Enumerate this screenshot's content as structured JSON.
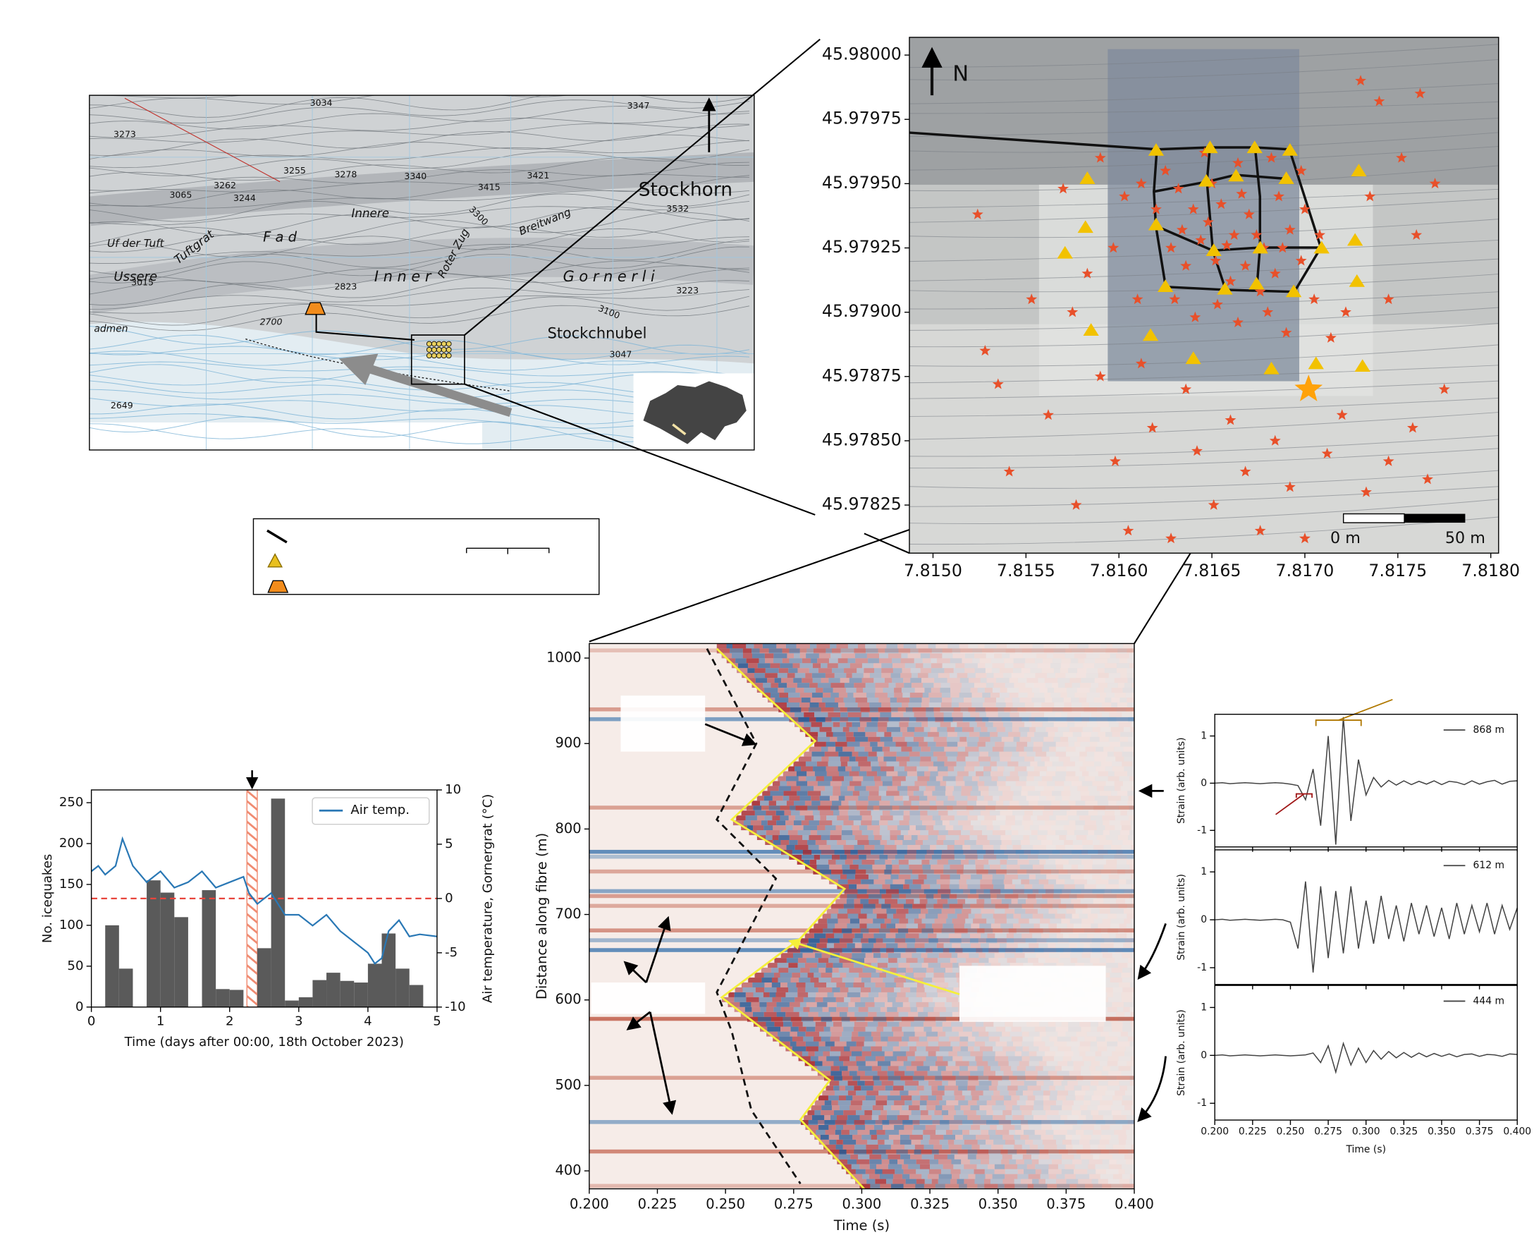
{
  "map": {
    "labels": [
      "3034",
      "3347",
      "3273",
      "3255",
      "3278",
      "3340",
      "3415",
      "3421",
      "Stockhorn",
      "3532",
      "3262",
      "3244",
      "3065",
      "Innere",
      "Uf der Tuft",
      "Tuftgrat",
      "F a d",
      "Ussere",
      "I n n e r",
      "G o r n e r l i",
      "Roter Zug",
      "Breitwang",
      "3300",
      "3015",
      "2823",
      "3223",
      "3100",
      "2700",
      "admen",
      "Stockchnubel",
      "3047",
      "2649"
    ]
  },
  "chart_data": [
    {
      "type": "scatter",
      "xlim": [
        7.814873,
        7.818042
      ],
      "ylim": [
        45.978063,
        45.980069
      ],
      "xticks": [
        {
          "value": 7.815,
          "label": "7.8150"
        },
        7.8155,
        {
          "value": 7.816,
          "label": "7.8160"
        },
        7.8165,
        {
          "value": 7.817,
          "label": "7.8170"
        },
        7.8175,
        {
          "value": 7.818,
          "label": "7.8180"
        }
      ],
      "yticks": [
        45.97825,
        {
          "value": 45.9785,
          "label": "45.97850"
        },
        45.97875,
        {
          "value": 45.979,
          "label": "45.97900"
        },
        45.97925,
        {
          "value": 45.9795,
          "label": "45.97950"
        },
        45.97975,
        {
          "value": 45.98,
          "label": "45.98000"
        }
      ],
      "annotations": [
        "N",
        "0 m",
        "50 m"
      ],
      "series": [
        {
          "marker": "star",
          "color": "#e8502a",
          "markersize": 6,
          "x": [
            7.81524,
            7.81535,
            7.81528,
            7.81541,
            7.81553,
            7.81562,
            7.81577,
            7.81583,
            7.8159,
            7.81598,
            7.81605,
            7.81612,
            7.81618,
            7.81628,
            7.81636,
            7.81642,
            7.81651,
            7.8166,
            7.81668,
            7.81676,
            7.81684,
            7.81692,
            7.817,
            7.81712,
            7.8172,
            7.81733,
            7.81745,
            7.81758,
            7.81766,
            7.81775,
            7.81745,
            7.8176,
            7.81752,
            7.8177,
            7.8174,
            7.8173,
            7.81762,
            7.81735,
            7.81722,
            7.81714,
            7.8159,
            7.81603,
            7.8157,
            7.81597,
            7.81575,
            7.8161,
            7.81625,
            7.81632,
            7.8164,
            7.81648,
            7.81655,
            7.81662,
            7.8167,
            7.81678,
            7.81686,
            7.81692,
            7.81628,
            7.81636,
            7.81644,
            7.81652,
            7.8166,
            7.81668,
            7.81676,
            7.81684,
            7.81698,
            7.81705,
            7.8163,
            7.81641,
            7.81653,
            7.81664,
            7.8168,
            7.8169,
            7.817,
            7.8162,
            7.81646,
            7.81664,
            7.81682,
            7.81698,
            7.81634,
            7.81658,
            7.81674,
            7.81688,
            7.8165,
            7.81666,
            7.81612,
            7.81708
          ],
          "y": [
            45.97938,
            45.97872,
            45.97885,
            45.97838,
            45.97905,
            45.9786,
            45.97825,
            45.97915,
            45.97875,
            45.97842,
            45.97815,
            45.9788,
            45.97855,
            45.97812,
            45.9787,
            45.97846,
            45.97825,
            45.97858,
            45.97838,
            45.97815,
            45.9785,
            45.97832,
            45.97812,
            45.97845,
            45.9786,
            45.9783,
            45.97842,
            45.97855,
            45.97835,
            45.9787,
            45.97905,
            45.9793,
            45.9796,
            45.9795,
            45.97982,
            45.9799,
            45.97985,
            45.97945,
            45.979,
            45.9789,
            45.9796,
            45.97945,
            45.97948,
            45.97925,
            45.979,
            45.97905,
            45.97955,
            45.97948,
            45.9794,
            45.97935,
            45.97942,
            45.9793,
            45.97938,
            45.97925,
            45.97945,
            45.97932,
            45.97925,
            45.97918,
            45.97928,
            45.9792,
            45.97912,
            45.97918,
            45.97908,
            45.97915,
            45.9792,
            45.97905,
            45.97905,
            45.97898,
            45.97903,
            45.97896,
            45.979,
            45.97892,
            45.9794,
            45.9794,
            45.97962,
            45.97958,
            45.9796,
            45.97955,
            45.97932,
            45.97926,
            45.9793,
            45.97925,
            45.9795,
            45.97946,
            45.9795,
            45.9793
          ]
        },
        {
          "marker": "triangle",
          "color": "#f2c200",
          "markersize": 8,
          "x": [
            7.8162,
            7.81649,
            7.81673,
            7.81692,
            7.81583,
            7.81729,
            7.81647,
            7.81663,
            7.8169,
            7.8162,
            7.81582,
            7.81571,
            7.81651,
            7.81676,
            7.81709,
            7.81727,
            7.81625,
            7.81657,
            7.81674,
            7.81694,
            7.81728,
            7.81585,
            7.81617,
            7.8164,
            7.81682,
            7.81706,
            7.81731
          ],
          "y": [
            45.97963,
            45.97964,
            45.97964,
            45.97963,
            45.97952,
            45.97955,
            45.97951,
            45.97953,
            45.97952,
            45.97934,
            45.97933,
            45.97923,
            45.97924,
            45.97925,
            45.97925,
            45.97928,
            45.9791,
            45.97909,
            45.97911,
            45.97908,
            45.97912,
            45.97893,
            45.97891,
            45.97882,
            45.97878,
            45.9788,
            45.97879
          ]
        },
        {
          "marker": "star",
          "color": "#ffa20a",
          "markersize": 15,
          "x": [
            7.81702
          ],
          "y": [
            45.9787
          ]
        }
      ]
    },
    {
      "type": "histogram",
      "xlabel": "Time (days after 00:00, 18th October 2023)",
      "ylabel": "No. icequakes",
      "y2label": "Air temperature, Gornergrat (°C)",
      "xlim": [
        0,
        5
      ],
      "xticks": [
        0,
        1,
        2,
        3,
        4,
        5
      ],
      "ylim": [
        0,
        265.6
      ],
      "yticks": [
        0,
        50,
        100,
        150,
        200,
        250
      ],
      "y2lim": [
        -10,
        10
      ],
      "y2ticks": [
        -10,
        -5,
        0,
        5,
        10
      ],
      "color": "#5a5a5a",
      "bins": [
        0.2,
        0.4,
        0.6,
        0.8,
        1.0,
        1.2,
        1.4,
        1.6,
        1.8,
        2.0,
        2.2,
        2.4,
        2.6,
        2.8,
        3.0,
        3.2,
        3.4,
        3.6,
        3.8,
        4.0,
        4.2,
        4.4,
        4.6,
        4.8
      ],
      "values": [
        100,
        47,
        0,
        155,
        140,
        110,
        0,
        143,
        22,
        21,
        0,
        72,
        255,
        8,
        12,
        33,
        42,
        32,
        30,
        53,
        90,
        47,
        27
      ],
      "hline": {
        "value": 0,
        "axis": "y2",
        "color": "#e8453c"
      },
      "span": [
        2.25,
        2.4
      ],
      "span_color": "#f08a70",
      "legend": "upper right",
      "series": [
        {
          "name": "Air temp.",
          "color": "#2a78b5",
          "axis": "y2",
          "x": [
            0,
            0.1,
            0.2,
            0.35,
            0.45,
            0.6,
            0.8,
            1.0,
            1.2,
            1.4,
            1.6,
            1.8,
            2.0,
            2.2,
            2.28,
            2.4,
            2.6,
            2.8,
            3.0,
            3.2,
            3.4,
            3.6,
            3.8,
            4.0,
            4.1,
            4.2,
            4.3,
            4.45,
            4.6,
            4.75,
            5.0
          ],
          "values": [
            2.5,
            3,
            2.2,
            3,
            5.5,
            3,
            1.5,
            2.5,
            1,
            1.5,
            2.5,
            1,
            1.5,
            2,
            0.5,
            -0.5,
            0.5,
            -1.5,
            -1.5,
            -2.5,
            -1.5,
            -3,
            -4,
            -5,
            -6,
            -5.5,
            -3,
            -2,
            -3.5,
            -3.3,
            -3.5
          ]
        }
      ]
    },
    {
      "type": "heatmap",
      "xlabel": "Time (s)",
      "ylabel": "Distance along fibre (m)",
      "xlim": [
        0.2,
        0.4
      ],
      "ylim": [
        379,
        1017
      ],
      "xticks": [
        {
          "value": 0.2,
          "label": "0.200"
        },
        0.225,
        {
          "value": 0.25,
          "label": "0.250"
        },
        0.275,
        {
          "value": 0.3,
          "label": "0.300"
        },
        0.325,
        {
          "value": 0.35,
          "label": "0.350"
        },
        0.375,
        {
          "value": 0.4,
          "label": "0.400"
        }
      ],
      "yticks": [
        400,
        500,
        600,
        700,
        800,
        900,
        1000
      ],
      "series": [
        {
          "style": "dashed",
          "color": "#111111",
          "x": [
            0.2432,
            0.2613,
            0.2468,
            0.2685,
            0.2468,
            0.2523,
            0.2595,
            0.2775
          ],
          "y": [
            1011,
            900,
            811,
            742,
            609,
            563,
            471,
            385
          ]
        },
        {
          "style": "solid",
          "color": "#f5f03a",
          "x": [
            0.2468,
            0.2613,
            0.2829,
            0.2523,
            0.2937,
            0.2775,
            0.2486,
            0.2883,
            0.2775,
            0.3009
          ],
          "y": [
            1011,
            966,
            903,
            811,
            730,
            672,
            603,
            506,
            460,
            379
          ]
        }
      ]
    },
    {
      "type": "line",
      "ylabel": "Strain (arb. units)",
      "xlim": [
        0.2,
        0.4
      ],
      "ylim": [
        -1.35,
        1.46
      ],
      "xticks": [
        0.2,
        0.225,
        0.25,
        0.275,
        0.3,
        0.325,
        0.35,
        0.375,
        0.4
      ],
      "xticklabels": false,
      "yticks": [
        -1,
        0,
        1
      ],
      "legend": "upper right",
      "x": [
        0.2,
        0.205,
        0.21,
        0.215,
        0.22,
        0.225,
        0.23,
        0.235,
        0.24,
        0.245,
        0.25,
        0.255,
        0.26,
        0.265,
        0.27,
        0.275,
        0.28,
        0.285,
        0.29,
        0.295,
        0.3,
        0.305,
        0.31,
        0.315,
        0.32,
        0.325,
        0.33,
        0.335,
        0.34,
        0.345,
        0.35,
        0.355,
        0.36,
        0.365,
        0.37,
        0.375,
        0.38,
        0.385,
        0.39,
        0.395,
        0.4
      ],
      "series": [
        {
          "name": "868 m",
          "color": "#444444",
          "values": [
            0,
            0.01,
            -0.01,
            0,
            0.01,
            0,
            -0.01,
            0,
            0.01,
            0,
            -0.02,
            -0.05,
            -0.35,
            0.3,
            -0.9,
            1.0,
            -1.3,
            1.4,
            -0.8,
            0.5,
            -0.25,
            0.12,
            -0.08,
            0.06,
            -0.04,
            0.05,
            -0.03,
            0.04,
            -0.02,
            0.05,
            -0.03,
            0.04,
            0.02,
            -0.03,
            0.05,
            -0.02,
            0.03,
            0.06,
            -0.02,
            0.04,
            0.05
          ]
        }
      ]
    },
    {
      "type": "line",
      "ylabel": "Strain (arb. units)",
      "xlim": [
        0.2,
        0.4
      ],
      "ylim": [
        -1.35,
        1.46
      ],
      "xticks": [
        0.2,
        0.225,
        0.25,
        0.275,
        0.3,
        0.325,
        0.35,
        0.375,
        0.4
      ],
      "xticklabels": false,
      "yticks": [
        -1,
        0,
        1
      ],
      "legend": "upper right",
      "x": [
        0.2,
        0.205,
        0.21,
        0.215,
        0.22,
        0.225,
        0.23,
        0.235,
        0.24,
        0.245,
        0.25,
        0.255,
        0.26,
        0.265,
        0.27,
        0.275,
        0.28,
        0.285,
        0.29,
        0.295,
        0.3,
        0.305,
        0.31,
        0.315,
        0.32,
        0.325,
        0.33,
        0.335,
        0.34,
        0.345,
        0.35,
        0.355,
        0.36,
        0.365,
        0.37,
        0.375,
        0.38,
        0.385,
        0.39,
        0.395,
        0.4
      ],
      "series": [
        {
          "name": "612 m",
          "color": "#444444",
          "values": [
            0,
            0.01,
            -0.01,
            0,
            0.01,
            0,
            -0.01,
            0,
            0.01,
            0,
            -0.05,
            -0.6,
            0.8,
            -1.1,
            0.7,
            -0.8,
            0.6,
            -0.7,
            0.7,
            -0.6,
            0.4,
            -0.5,
            0.5,
            -0.4,
            0.3,
            -0.45,
            0.35,
            -0.3,
            0.3,
            -0.35,
            0.25,
            -0.4,
            0.35,
            -0.3,
            0.3,
            -0.25,
            0.35,
            -0.3,
            0.3,
            -0.2,
            0.25
          ]
        }
      ]
    },
    {
      "type": "line",
      "ylabel": "Strain (arb. units)",
      "xlabel": "Time (s)",
      "xlim": [
        0.2,
        0.4
      ],
      "ylim": [
        -1.35,
        1.46
      ],
      "xticks": [
        {
          "value": 0.2,
          "label": "0.200"
        },
        0.225,
        {
          "value": 0.25,
          "label": "0.250"
        },
        0.275,
        {
          "value": 0.3,
          "label": "0.300"
        },
        0.325,
        {
          "value": 0.35,
          "label": "0.350"
        },
        0.375,
        {
          "value": 0.4,
          "label": "0.400"
        }
      ],
      "yticks": [
        -1,
        0,
        1
      ],
      "legend": "upper right",
      "x": [
        0.2,
        0.205,
        0.21,
        0.215,
        0.22,
        0.225,
        0.23,
        0.235,
        0.24,
        0.245,
        0.25,
        0.255,
        0.26,
        0.265,
        0.27,
        0.275,
        0.28,
        0.285,
        0.29,
        0.295,
        0.3,
        0.305,
        0.31,
        0.315,
        0.32,
        0.325,
        0.33,
        0.335,
        0.34,
        0.345,
        0.35,
        0.355,
        0.36,
        0.365,
        0.37,
        0.375,
        0.38,
        0.385,
        0.39,
        0.395,
        0.4
      ],
      "series": [
        {
          "name": "444 m",
          "color": "#444444",
          "values": [
            0,
            0.01,
            -0.01,
            0,
            0.01,
            0,
            -0.01,
            0,
            0.01,
            0,
            -0.01,
            0,
            0.01,
            0.05,
            -0.15,
            0.2,
            -0.35,
            0.25,
            -0.2,
            0.15,
            -0.15,
            0.1,
            -0.08,
            0.08,
            -0.05,
            0.06,
            -0.04,
            0.05,
            -0.03,
            0.04,
            -0.02,
            0.03,
            -0.03,
            0.02,
            0.03,
            -0.02,
            0.02,
            0.01,
            -0.02,
            0.03,
            0.02
          ]
        }
      ]
    }
  ]
}
